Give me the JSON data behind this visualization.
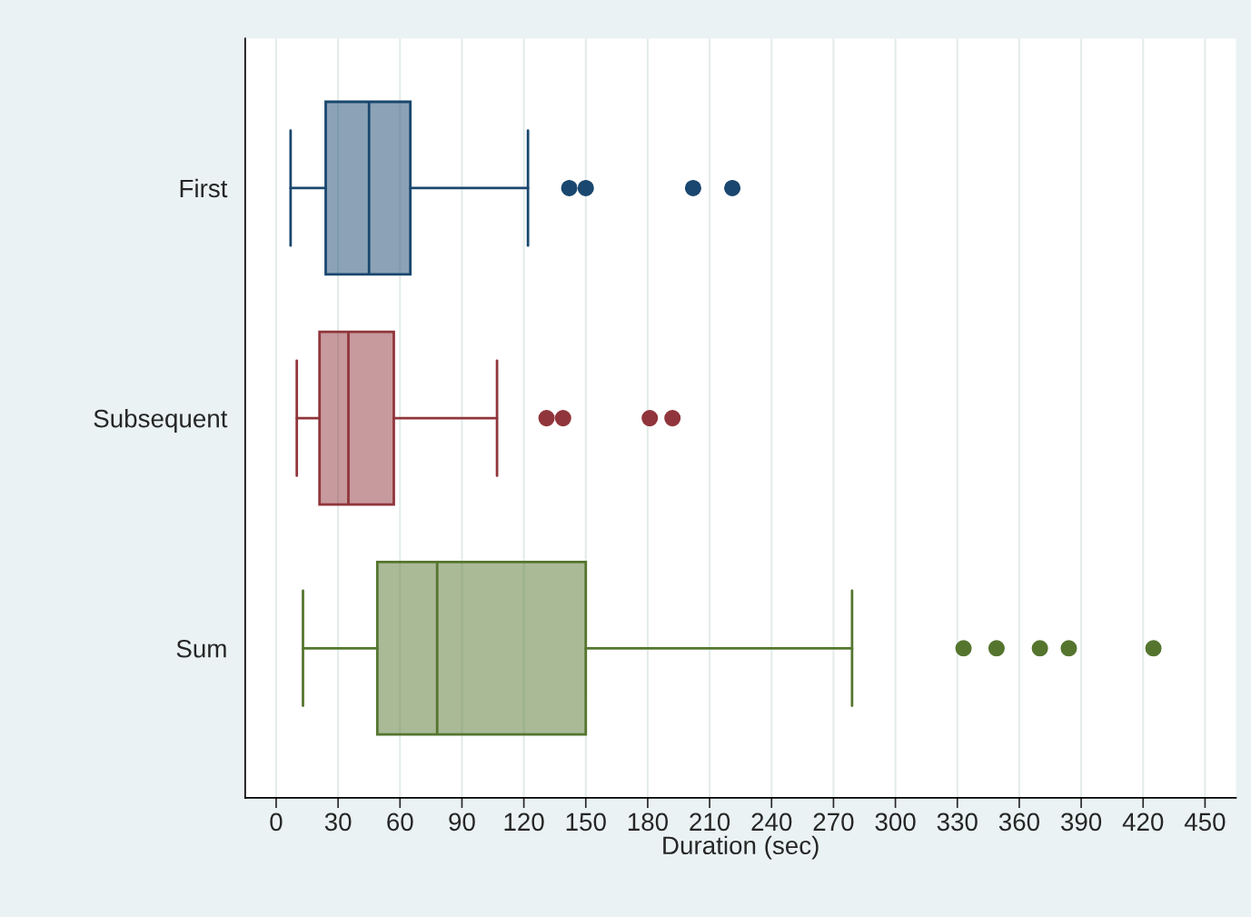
{
  "chart_data": {
    "type": "box",
    "orientation": "horizontal",
    "xlabel": "Duration (sec)",
    "categories": [
      "First",
      "Subsequent",
      "Sum"
    ],
    "boxes": [
      {
        "low": 7,
        "q1": 24,
        "median": 45,
        "q3": 65,
        "high": 122,
        "outliers": [
          142,
          150,
          202,
          221
        ]
      },
      {
        "low": 10,
        "q1": 21,
        "median": 35,
        "q3": 57,
        "high": 107,
        "outliers": [
          131,
          139,
          181,
          192
        ]
      },
      {
        "low": 13,
        "q1": 49,
        "median": 78,
        "q3": 150,
        "high": 279,
        "outliers": [
          333,
          349,
          370,
          384,
          425
        ]
      }
    ],
    "colors": [
      "#1a476f",
      "#90353b",
      "#55752f"
    ],
    "xlim": [
      -15,
      465
    ],
    "xticks": [
      0,
      30,
      60,
      90,
      120,
      150,
      180,
      210,
      240,
      270,
      300,
      330,
      360,
      390,
      420,
      450
    ],
    "grid": "x",
    "marker": "circle"
  }
}
